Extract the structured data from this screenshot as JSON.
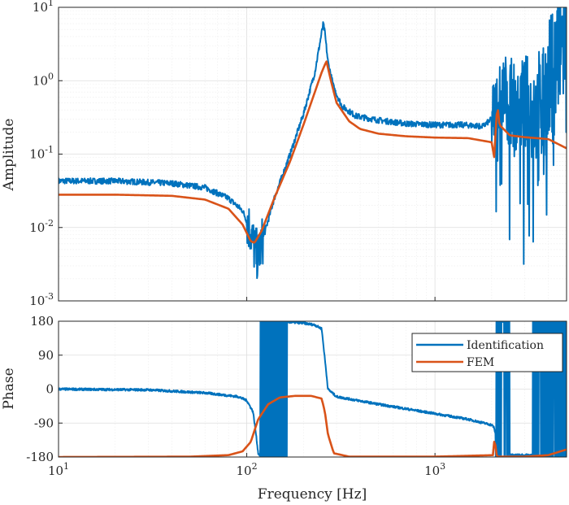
{
  "chart_data": [
    {
      "type": "line",
      "panel": "amplitude",
      "ylabel": "Amplitude",
      "xscale": "log",
      "yscale": "log",
      "xlim": [
        10,
        5000
      ],
      "ylim": [
        0.001,
        10
      ],
      "grid": true,
      "yticks": [
        0.001,
        0.01,
        0.1,
        1,
        10
      ],
      "ytick_labels": [
        {
          "b": "10",
          "e": "-3"
        },
        {
          "b": "10",
          "e": "-2"
        },
        {
          "b": "10",
          "e": "-1"
        },
        {
          "b": "10",
          "e": "0"
        },
        {
          "b": "10",
          "e": "1"
        }
      ],
      "series": [
        {
          "name": "Identification",
          "color": "#0072BD",
          "noisy": true,
          "x": [
            10,
            20,
            40,
            60,
            80,
            95,
            105,
            110,
            115,
            120,
            140,
            170,
            200,
            230,
            250,
            255,
            260,
            270,
            290,
            320,
            380,
            500,
            700,
            1000,
            1400,
            1800,
            2000,
            2150,
            2300,
            2500,
            3000,
            3500,
            4000,
            4500,
            5000
          ],
          "y": [
            0.043,
            0.043,
            0.04,
            0.035,
            0.025,
            0.017,
            0.009,
            0.005,
            0.004,
            0.006,
            0.025,
            0.1,
            0.35,
            1.3,
            4.5,
            6,
            4.5,
            1.8,
            0.8,
            0.45,
            0.33,
            0.29,
            0.26,
            0.25,
            0.25,
            0.24,
            0.3,
            0.45,
            0.7,
            0.5,
            0.45,
            0.4,
            0.8,
            2,
            7
          ]
        },
        {
          "name": "FEM",
          "color": "#D95319",
          "noisy": false,
          "x": [
            10,
            20,
            40,
            60,
            80,
            95,
            105,
            110,
            120,
            140,
            170,
            200,
            230,
            250,
            265,
            280,
            300,
            350,
            400,
            500,
            700,
            1000,
            1500,
            2000,
            2050,
            2080,
            2100,
            2150,
            2200,
            2500,
            3000,
            4000,
            5000
          ],
          "y": [
            0.028,
            0.028,
            0.027,
            0.024,
            0.018,
            0.011,
            0.0065,
            0.0062,
            0.009,
            0.025,
            0.08,
            0.25,
            0.7,
            1.3,
            1.85,
            1.0,
            0.5,
            0.28,
            0.22,
            0.19,
            0.175,
            0.168,
            0.165,
            0.145,
            0.1,
            0.08,
            0.25,
            0.45,
            0.25,
            0.18,
            0.17,
            0.16,
            0.12
          ]
        }
      ]
    },
    {
      "type": "line",
      "panel": "phase",
      "xlabel": "Frequency [Hz]",
      "ylabel": "Phase",
      "xscale": "log",
      "xlim": [
        10,
        5000
      ],
      "ylim": [
        -180,
        180
      ],
      "yticks": [
        -180,
        -90,
        0,
        90,
        180
      ],
      "xtick_labels": [
        {
          "b": "10",
          "e": "1"
        },
        {
          "b": "10",
          "e": "2"
        },
        {
          "b": "10",
          "e": "3"
        }
      ],
      "grid": true,
      "legend": "top-right",
      "series": [
        {
          "name": "Identification",
          "color": "#0072BD",
          "noisy": true,
          "x": [
            10,
            30,
            60,
            90,
            100,
            108,
            112,
            115,
            120,
            125,
            165,
            200,
            230,
            250,
            260,
            270,
            300,
            500,
            1000,
            1500,
            2000,
            2050,
            2100,
            2200,
            3000,
            4500,
            5000
          ],
          "y": [
            0,
            -2,
            -10,
            -20,
            -30,
            -60,
            -120,
            -170,
            -180,
            180,
            178,
            175,
            170,
            160,
            80,
            0,
            -20,
            -40,
            -65,
            -80,
            -95,
            -100,
            -120,
            -175,
            -175,
            -175,
            -175
          ]
        },
        {
          "name": "FEM",
          "color": "#D95319",
          "noisy": false,
          "x": [
            10,
            50,
            80,
            95,
            105,
            115,
            130,
            150,
            180,
            220,
            250,
            260,
            270,
            290,
            350,
            1000,
            2050,
            2080,
            2100,
            2150,
            3000,
            4000,
            5000
          ],
          "y": [
            -180,
            -179,
            -175,
            -165,
            -140,
            -80,
            -40,
            -22,
            -18,
            -18,
            -25,
            -60,
            -120,
            -170,
            -179,
            -179,
            -175,
            -90,
            -170,
            -179,
            -179,
            -175,
            -160
          ]
        }
      ]
    }
  ]
}
